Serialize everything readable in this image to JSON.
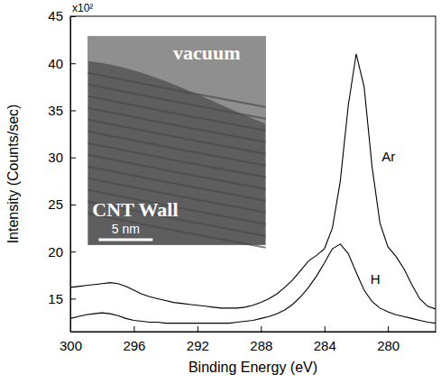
{
  "chart_data": {
    "type": "line",
    "x_label": "Binding Energy (eV)",
    "y_label": "Intensity (Counts/sec)",
    "y_multiplier_label": "x10²",
    "x": [
      300,
      299.5,
      299,
      298.5,
      298,
      297.5,
      297,
      296.5,
      296,
      295.5,
      295,
      294.5,
      294,
      293.5,
      293,
      292.5,
      292,
      291.5,
      291,
      290.5,
      290,
      289.5,
      289,
      288.5,
      288,
      287.5,
      287,
      286.5,
      286,
      285.5,
      285,
      284.5,
      284,
      283.5,
      283,
      282.5,
      282,
      281.5,
      281,
      280.5,
      280,
      279.5,
      279,
      278.5,
      278,
      277.5,
      277
    ],
    "series": [
      {
        "name": "Ar",
        "color": "#000000",
        "values": [
          16.2,
          16.3,
          16.4,
          16.5,
          16.6,
          16.7,
          16.6,
          16.3,
          15.9,
          15.5,
          15.2,
          15.0,
          14.8,
          14.6,
          14.5,
          14.4,
          14.3,
          14.2,
          14.1,
          14.0,
          14.0,
          14.0,
          14.1,
          14.3,
          14.6,
          15.0,
          15.5,
          16.2,
          17.0,
          18.0,
          19.0,
          19.6,
          20.3,
          22.5,
          27.5,
          35.5,
          41.0,
          37.5,
          29.0,
          23.0,
          20.5,
          19.5,
          18.2,
          16.5,
          15.0,
          14.2,
          13.9
        ]
      },
      {
        "name": "H",
        "color": "#000000",
        "values": [
          12.9,
          13.1,
          13.3,
          13.4,
          13.5,
          13.4,
          13.2,
          12.9,
          12.7,
          12.6,
          12.5,
          12.5,
          12.4,
          12.4,
          12.4,
          12.4,
          12.4,
          12.4,
          12.4,
          12.4,
          12.4,
          12.5,
          12.6,
          12.7,
          12.9,
          13.1,
          13.4,
          13.8,
          14.4,
          15.2,
          16.2,
          17.4,
          18.8,
          20.3,
          20.8,
          19.8,
          17.8,
          15.9,
          14.7,
          14.0,
          13.6,
          13.3,
          13.1,
          12.9,
          12.7,
          12.5,
          12.4
        ]
      }
    ],
    "xlim": [
      300,
      277
    ],
    "xticks": [
      300,
      296,
      292,
      288,
      284,
      280
    ],
    "ylim": [
      11.5,
      45
    ],
    "yticks": [
      15,
      20,
      25,
      30,
      35,
      40,
      45
    ],
    "grid": false,
    "inset": {
      "top_label": "vacuum",
      "bottom_label": "CNT Wall",
      "scale_bar_label": "5 nm"
    }
  }
}
